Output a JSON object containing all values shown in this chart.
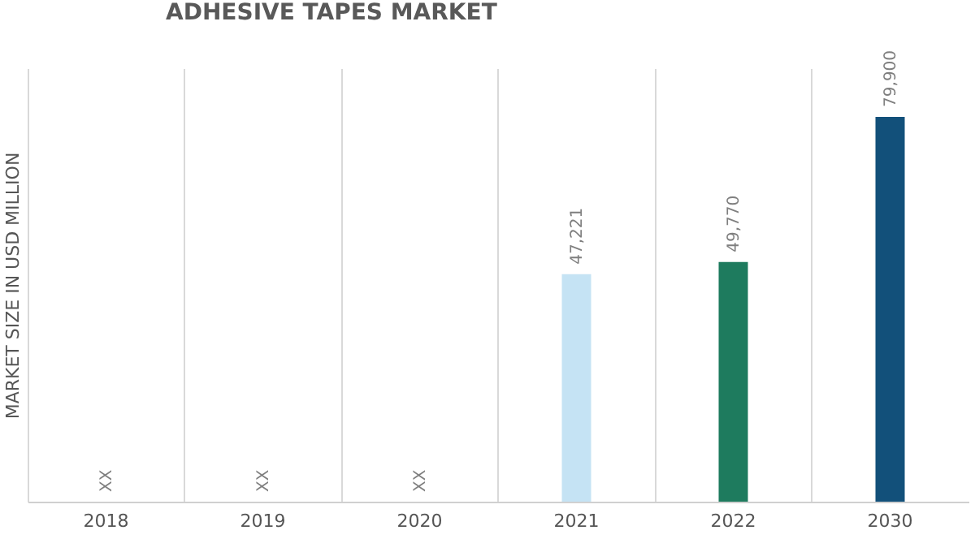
{
  "chart_data": {
    "type": "bar",
    "title": "ADHESIVE TAPES MARKET",
    "ylabel": "MARKET SIZE IN USD MILLION",
    "categories": [
      "2018",
      "2019",
      "2020",
      "2021",
      "2022",
      "2030"
    ],
    "values": [
      null,
      null,
      null,
      47221,
      49770,
      79900
    ],
    "colors": [
      "#c5e3f4",
      "#c5e3f4",
      "#c5e3f4",
      "#c5e3f4",
      "#1e7b5e",
      "#12507a"
    ],
    "value_labels": [
      "XX",
      "XX",
      "XX",
      "47,221",
      "49,770",
      "79,900"
    ],
    "ylim": [
      0,
      90000
    ],
    "grid": "x",
    "tick_labels": "x"
  }
}
